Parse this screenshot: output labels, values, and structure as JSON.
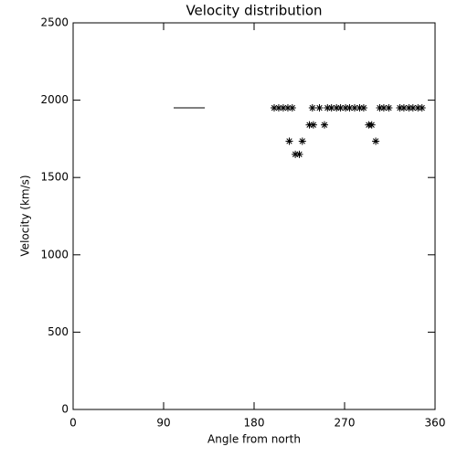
{
  "chart_data": {
    "type": "scatter",
    "title": "Velocity distribution",
    "x_label": "Angle from north",
    "y_label": "Velocity (km/s)",
    "color": "#000000",
    "x": [
      200,
      204.5,
      209,
      213.6,
      218,
      238,
      245,
      253,
      257,
      262,
      266,
      271,
      275,
      280,
      285,
      289,
      305,
      309,
      314,
      325,
      329,
      334,
      338,
      343,
      347,
      235,
      239,
      250,
      294,
      297,
      215,
      228,
      301,
      221,
      225
    ],
    "values": [
      1950,
      1950,
      1950,
      1950,
      1950,
      1950,
      1950,
      1950,
      1950,
      1950,
      1950,
      1950,
      1950,
      1950,
      1950,
      1950,
      1950,
      1950,
      1950,
      1950,
      1950,
      1950,
      1950,
      1950,
      1950,
      1840,
      1840,
      1840,
      1840,
      1840,
      1735,
      1735,
      1735,
      1650,
      1650
    ],
    "line": {
      "x": [
        100,
        131
      ],
      "values": [
        1950,
        1950
      ]
    },
    "xlim": [
      0,
      360
    ],
    "xticks": [
      0,
      90,
      180,
      270,
      360
    ],
    "ylim": [
      0,
      2500
    ],
    "yticks": [
      0,
      500,
      1000,
      1500,
      2000,
      2500
    ]
  }
}
